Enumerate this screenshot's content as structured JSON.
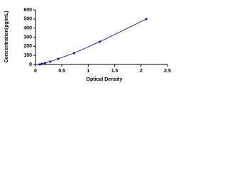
{
  "chart_data": {
    "type": "scatter",
    "x_label": "Optical Density",
    "y_label": "Concentration(pg/mL)",
    "series": [
      {
        "color": "#00008b",
        "x": [
          0.08,
          0.12,
          0.18,
          0.28,
          0.43,
          0.73,
          1.22,
          2.1
        ],
        "values": [
          0,
          7.8,
          15.6,
          31.25,
          62.5,
          125,
          250,
          500
        ]
      }
    ],
    "xlim": [
      0,
      2.5
    ],
    "xticks": [
      0,
      0.5,
      1,
      1.5,
      2,
      2.5
    ],
    "ylim": [
      0,
      600
    ],
    "yticks": [
      0,
      100,
      200,
      300,
      400,
      500,
      600
    ]
  }
}
